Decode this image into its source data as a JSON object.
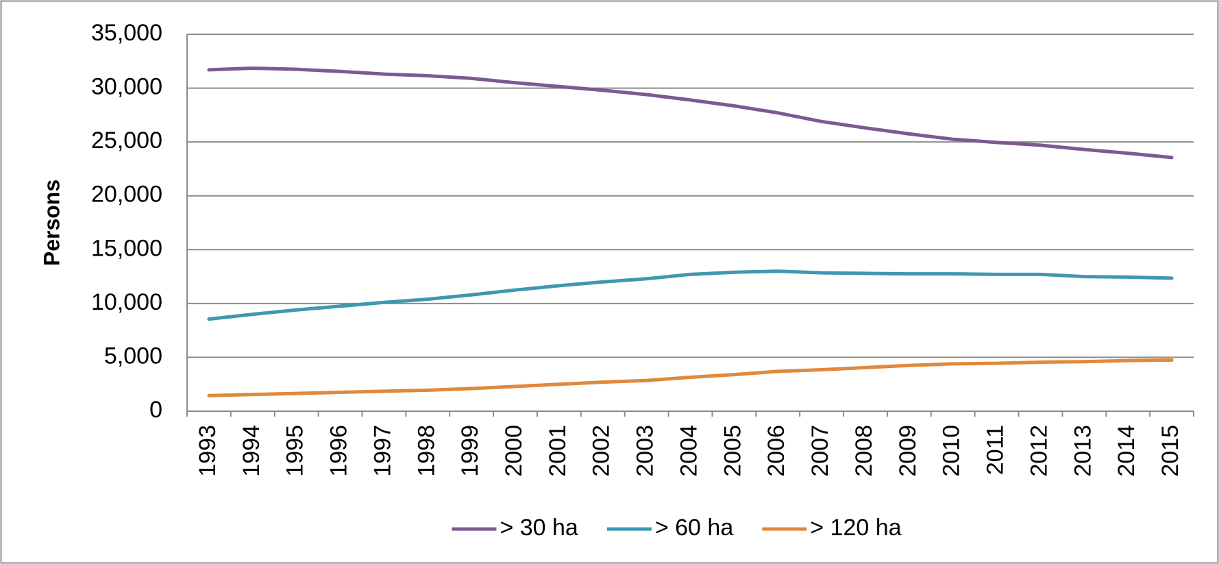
{
  "chart_data": {
    "type": "line",
    "y_label": "Persons",
    "categories": [
      "1993",
      "1994",
      "1995",
      "1996",
      "1997",
      "1998",
      "1999",
      "2000",
      "2001",
      "2002",
      "2003",
      "2004",
      "2005",
      "2006",
      "2007",
      "2008",
      "2009",
      "2010",
      "2011",
      "2012",
      "2013",
      "2014",
      "2015"
    ],
    "series": [
      {
        "name": "> 30 ha",
        "color": "#7b5a94",
        "values": [
          31700,
          31850,
          31750,
          31550,
          31300,
          31150,
          30900,
          30500,
          30150,
          29800,
          29400,
          28900,
          28350,
          27700,
          26900,
          26300,
          25750,
          25250,
          24950,
          24700,
          24300,
          23950,
          23550
        ]
      },
      {
        "name": "> 60 ha",
        "color": "#3f97b1",
        "values": [
          8550,
          9000,
          9400,
          9750,
          10100,
          10400,
          10800,
          11250,
          11650,
          12000,
          12300,
          12700,
          12900,
          13000,
          12850,
          12800,
          12750,
          12750,
          12700,
          12700,
          12500,
          12450,
          12350
        ]
      },
      {
        "name": "> 120 ha",
        "color": "#e0883b",
        "values": [
          1450,
          1550,
          1650,
          1750,
          1850,
          1950,
          2100,
          2300,
          2500,
          2700,
          2850,
          3150,
          3400,
          3700,
          3850,
          4050,
          4250,
          4400,
          4450,
          4550,
          4600,
          4700,
          4750
        ]
      }
    ],
    "ylim": [
      0,
      35000
    ],
    "yticks": [
      0,
      {
        "value": 5000,
        "label": "5,000"
      },
      {
        "value": 10000,
        "label": "10,000"
      },
      {
        "value": 15000,
        "label": "15,000"
      },
      {
        "value": 20000,
        "label": "20,000"
      },
      {
        "value": 25000,
        "label": "25,000"
      },
      {
        "value": 30000,
        "label": "30,000"
      },
      {
        "value": 35000,
        "label": "35,000"
      }
    ],
    "grid": true,
    "legend": "bottom"
  }
}
